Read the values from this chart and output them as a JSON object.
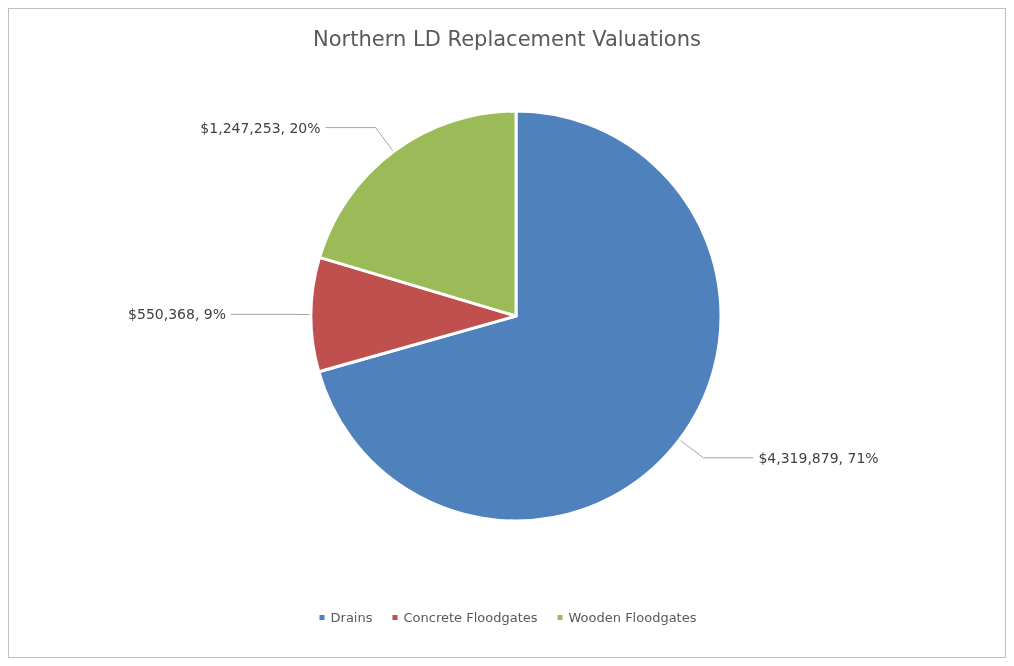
{
  "chart_data": {
    "type": "pie",
    "title": "Northern LD Replacement Valuations",
    "categories": [
      "Drains",
      "Concrete Floodgates",
      "Wooden Floodgates"
    ],
    "values": [
      4319879,
      550368,
      1247253
    ],
    "colors": [
      "#4f81bd",
      "#c0504d",
      "#9bbb59"
    ],
    "value_labels": [
      "$4,319,879, 71%",
      "$550,368, 9%",
      "$1,247,253, 20%"
    ],
    "legend": "bottom"
  }
}
